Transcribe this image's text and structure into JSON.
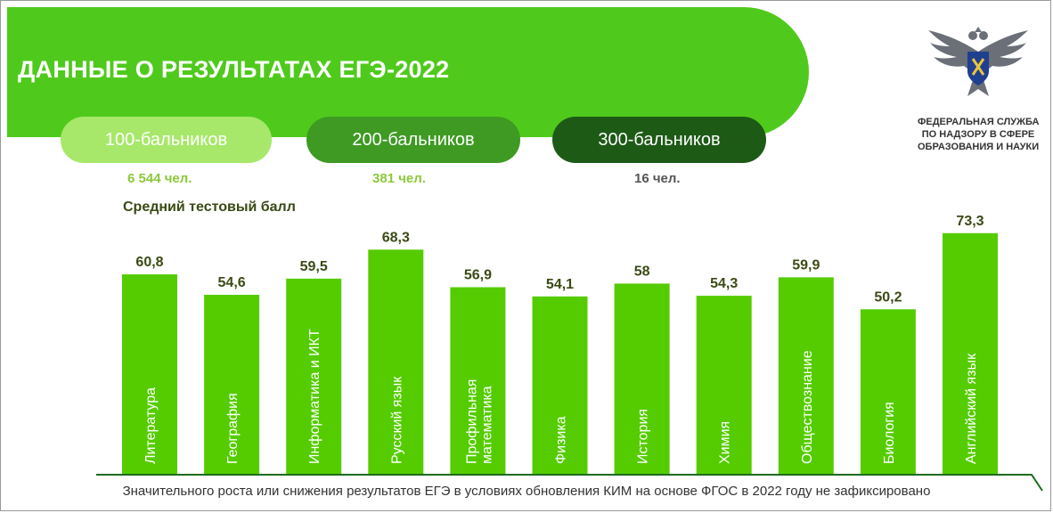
{
  "header": {
    "title": "ДАННЫЕ О РЕЗУЛЬТАТАХ ЕГЭ-2022"
  },
  "stats": [
    {
      "label": "100-бальников",
      "count": "6 544 чел."
    },
    {
      "label": "200-бальников",
      "count": "381 чел."
    },
    {
      "label": "300-бальников",
      "count": "16 чел."
    }
  ],
  "agency": {
    "lines": [
      "ФЕДЕРАЛЬНАЯ СЛУЖБА",
      "ПО НАДЗОРУ В СФЕРЕ",
      "ОБРАЗОВАНИЯ И НАУКИ"
    ]
  },
  "footnote": "Значительного роста или снижения результатов ЕГЭ в условиях обновления КИМ на основе ФГОС в 2022 году не зафиксировано",
  "colors": {
    "bar": "#55cc00",
    "banner": "#4fca1c",
    "pill_light": "#a7e86a",
    "pill_mid": "#3e9a23",
    "pill_dark": "#1d5a16",
    "value_label": "#3a4a14",
    "axis_line": "#1d6b1d"
  },
  "chart_data": {
    "type": "bar",
    "title": "Средний тестовый балл",
    "categories": [
      "Литература",
      "География",
      "Информатика и ИКТ",
      "Русский язык",
      "Профильная математика",
      "Физика",
      "История",
      "Химия",
      "Обществознание",
      "Биология",
      "Английский язык"
    ],
    "values": [
      60.8,
      54.6,
      59.5,
      68.3,
      56.9,
      54.1,
      58,
      54.3,
      59.9,
      50.2,
      73.3
    ],
    "value_labels": [
      "60,8",
      "54,6",
      "59,5",
      "68,3",
      "56,9",
      "54,1",
      "58",
      "54,3",
      "59,9",
      "50,2",
      "73,3"
    ],
    "xlabel": "",
    "ylabel": "",
    "grid": false
  }
}
